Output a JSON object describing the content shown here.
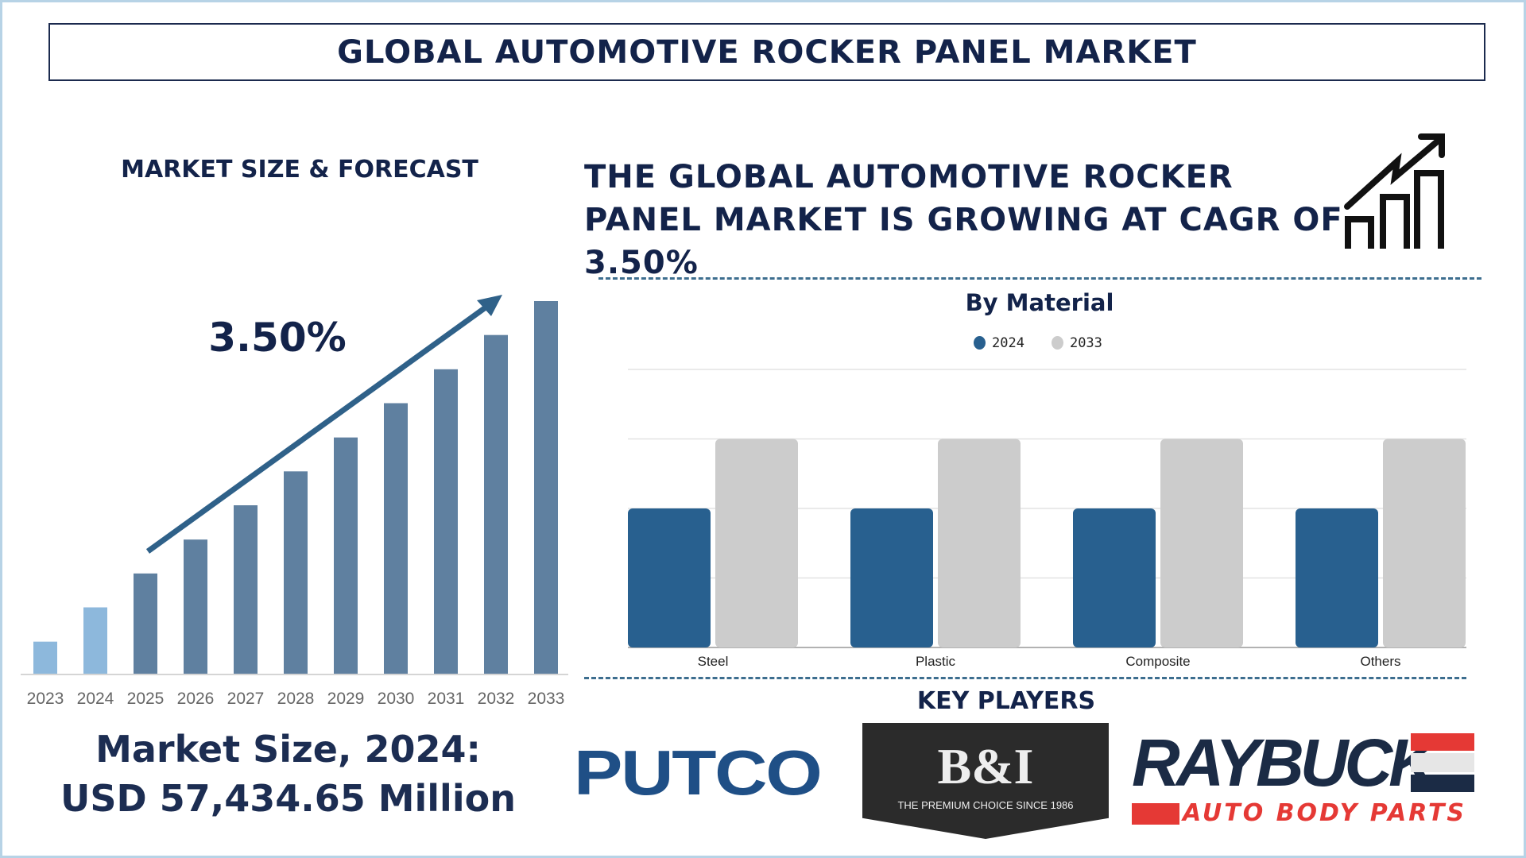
{
  "title": "GLOBAL AUTOMOTIVE ROCKER PANEL MARKET",
  "left": {
    "heading": "MARKET SIZE & FORECAST",
    "cagr_label": "3.50%",
    "market_size_line1": "Market Size, 2024:",
    "market_size_line2": "USD 57,434.65 Million"
  },
  "headline": {
    "lines": [
      "THE GLOBAL AUTOMOTIVE ROCKER",
      "PANEL MARKET IS GROWING AT CAGR OF",
      "3.50%"
    ],
    "icon": "growth-chart-icon"
  },
  "key_players": {
    "heading": "KEY PLAYERS",
    "logos": [
      {
        "name": "PUTCO"
      },
      {
        "name": "B&I",
        "tagline": "THE PREMIUM CHOICE SINCE 1986"
      },
      {
        "name": "RAYBUCK",
        "tagline": "AUTO BODY PARTS"
      }
    ]
  },
  "colors": {
    "navy": "#13234a",
    "forecast_bar": "#5f80a0",
    "historic_bar": "#8db8dc",
    "series_2024": "#28608f",
    "series_2033": "#cccccc",
    "dash": "#3d6e8f"
  },
  "chart_data": [
    {
      "type": "bar",
      "title": "",
      "categories": [
        "2023",
        "2024",
        "2025",
        "2026",
        "2027",
        "2028",
        "2029",
        "2030",
        "2031",
        "2032",
        "2033"
      ],
      "values": [
        8.6,
        17.8,
        26.9,
        36,
        45.2,
        54.3,
        63.4,
        72.6,
        81.7,
        90.9,
        100
      ],
      "value_scale": "relative (2033 = 100), no axis values shown",
      "historic": [
        "2023",
        "2024"
      ],
      "annotation": "3.50%",
      "grid": false
    },
    {
      "type": "bar",
      "title": "By Material",
      "categories": [
        "Steel",
        "Plastic",
        "Composite",
        "Others"
      ],
      "series": [
        {
          "name": "2024",
          "values": [
            2,
            2,
            2,
            2
          ]
        },
        {
          "name": "2033",
          "values": [
            3,
            3,
            3,
            3
          ]
        }
      ],
      "ylim": [
        0,
        4
      ],
      "value_scale": "relative gridline units, no axis labels shown",
      "grid": true,
      "legend": "top-center"
    }
  ]
}
